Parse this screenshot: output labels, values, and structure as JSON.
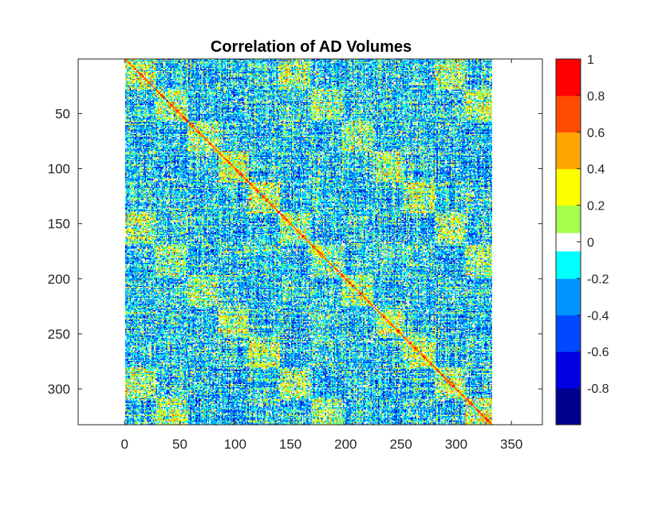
{
  "chart_data": {
    "type": "heatmap",
    "title": "Correlation of AD Volumes",
    "xlabel": "",
    "ylabel": "",
    "matrix_size": 332,
    "xlim": [
      -42,
      378
    ],
    "ylim": [
      0.5,
      332.5
    ],
    "y_reversed": true,
    "x_ticks": [
      0,
      50,
      100,
      150,
      200,
      250,
      300,
      350
    ],
    "y_ticks": [
      50,
      100,
      150,
      200,
      250,
      300
    ],
    "x_tick_labels": [
      "0",
      "50",
      "100",
      "150",
      "200",
      "250",
      "300",
      "350"
    ],
    "y_tick_labels": [
      "50",
      "100",
      "150",
      "200",
      "250",
      "300"
    ],
    "diagonal_value": 1,
    "colorbar": {
      "limits": [
        -1,
        1
      ],
      "ticks": [
        1,
        0.8,
        0.6,
        0.4,
        0.2,
        0,
        -0.2,
        -0.4,
        -0.6,
        -0.8
      ],
      "tick_labels": [
        "1",
        "0.8",
        "0.6",
        "0.4",
        "0.2",
        "0",
        "-0.2",
        "-0.4",
        "-0.6",
        "-0.8"
      ],
      "colors": [
        "#00008f",
        "#0000e0",
        "#0048ff",
        "#0094ff",
        "#00ffff",
        "#ffffff",
        "#a6ff4d",
        "#ffff00",
        "#ffa500",
        "#ff4c00",
        "#ff0000"
      ],
      "bins": [
        -1,
        -0.8,
        -0.6,
        -0.4,
        -0.2,
        -0.05,
        0.05,
        0.2,
        0.4,
        0.6,
        0.8,
        1
      ]
    },
    "grid": false,
    "legend": "colorbar-right"
  }
}
